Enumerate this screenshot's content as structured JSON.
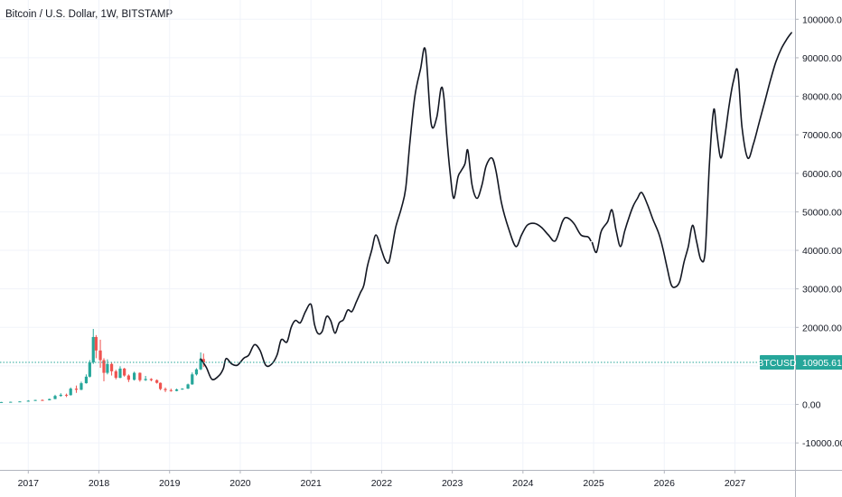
{
  "header": {
    "title": "Bitcoin / U.S. Dollar, 1W, BITSTAMP"
  },
  "chart_data": {
    "type": "line",
    "title": "Bitcoin / U.S. Dollar, 1W, BITSTAMP",
    "xlabel": "",
    "ylabel": "",
    "xlim": [
      2016.6,
      2027.85
    ],
    "ylim": [
      -17000,
      105000
    ],
    "grid": true,
    "x_ticks": [
      "2017",
      "2018",
      "2019",
      "2020",
      "2021",
      "2022",
      "2023",
      "2024",
      "2025",
      "2026",
      "2027"
    ],
    "y_ticks": [
      "100000.00",
      "90000.00",
      "80000.00",
      "70000.00",
      "60000.00",
      "50000.00",
      "40000.00",
      "30000.00",
      "20000.00",
      "10000.00",
      "0.00",
      "-10000.00"
    ],
    "y_tick_values": [
      100000,
      90000,
      80000,
      70000,
      60000,
      50000,
      40000,
      30000,
      20000,
      10000,
      0,
      -10000
    ],
    "last_price": {
      "label": "BTCUSD",
      "value": "10905.61",
      "numeric": 10905.61
    },
    "colors": {
      "up": "#26a69a",
      "down": "#ef5350",
      "projection": "#131722",
      "price_line": "#26a69a"
    },
    "candles": [
      {
        "x": 2016.62,
        "open": 600,
        "close": 620,
        "low": 580,
        "high": 650
      },
      {
        "x": 2016.75,
        "open": 620,
        "close": 680,
        "low": 600,
        "high": 720
      },
      {
        "x": 2016.88,
        "open": 680,
        "close": 780,
        "low": 660,
        "high": 800
      },
      {
        "x": 2017.0,
        "open": 780,
        "close": 960,
        "low": 750,
        "high": 1100
      },
      {
        "x": 2017.1,
        "open": 960,
        "close": 1150,
        "low": 900,
        "high": 1200
      },
      {
        "x": 2017.2,
        "open": 1150,
        "close": 1080,
        "low": 950,
        "high": 1280
      },
      {
        "x": 2017.3,
        "open": 1080,
        "close": 1400,
        "low": 1050,
        "high": 1500
      },
      {
        "x": 2017.38,
        "open": 1400,
        "close": 2200,
        "low": 1350,
        "high": 2500
      },
      {
        "x": 2017.46,
        "open": 2200,
        "close": 2500,
        "low": 2000,
        "high": 2900
      },
      {
        "x": 2017.54,
        "open": 2500,
        "close": 2400,
        "low": 1900,
        "high": 2800
      },
      {
        "x": 2017.6,
        "open": 2400,
        "close": 4100,
        "low": 2300,
        "high": 4400
      },
      {
        "x": 2017.68,
        "open": 4100,
        "close": 3800,
        "low": 3000,
        "high": 4900
      },
      {
        "x": 2017.75,
        "open": 3800,
        "close": 5500,
        "low": 3700,
        "high": 5900
      },
      {
        "x": 2017.82,
        "open": 5500,
        "close": 7200,
        "low": 5400,
        "high": 7800
      },
      {
        "x": 2017.87,
        "open": 7200,
        "close": 10900,
        "low": 7000,
        "high": 11500
      },
      {
        "x": 2017.92,
        "open": 10900,
        "close": 17500,
        "low": 10500,
        "high": 19600
      },
      {
        "x": 2017.96,
        "open": 17500,
        "close": 14000,
        "low": 12000,
        "high": 18000
      },
      {
        "x": 2018.02,
        "open": 14000,
        "close": 11500,
        "low": 9500,
        "high": 16800
      },
      {
        "x": 2018.07,
        "open": 11500,
        "close": 8200,
        "low": 6000,
        "high": 12000
      },
      {
        "x": 2018.12,
        "open": 8200,
        "close": 10500,
        "low": 7800,
        "high": 11700
      },
      {
        "x": 2018.18,
        "open": 10500,
        "close": 8600,
        "low": 7500,
        "high": 11000
      },
      {
        "x": 2018.24,
        "open": 8600,
        "close": 6900,
        "low": 6500,
        "high": 9000
      },
      {
        "x": 2018.3,
        "open": 6900,
        "close": 9300,
        "low": 6800,
        "high": 9900
      },
      {
        "x": 2018.36,
        "open": 9300,
        "close": 7500,
        "low": 7200,
        "high": 9500
      },
      {
        "x": 2018.42,
        "open": 7500,
        "close": 6400,
        "low": 5800,
        "high": 7800
      },
      {
        "x": 2018.5,
        "open": 6400,
        "close": 8200,
        "low": 6200,
        "high": 8500
      },
      {
        "x": 2018.58,
        "open": 8200,
        "close": 6300,
        "low": 5900,
        "high": 8300
      },
      {
        "x": 2018.66,
        "open": 6300,
        "close": 6600,
        "low": 6100,
        "high": 7400
      },
      {
        "x": 2018.74,
        "open": 6600,
        "close": 6300,
        "low": 6000,
        "high": 6800
      },
      {
        "x": 2018.82,
        "open": 6300,
        "close": 5600,
        "low": 5400,
        "high": 6500
      },
      {
        "x": 2018.87,
        "open": 5600,
        "close": 4000,
        "low": 3700,
        "high": 5700
      },
      {
        "x": 2018.94,
        "open": 4000,
        "close": 3700,
        "low": 3200,
        "high": 4400
      },
      {
        "x": 2019.02,
        "open": 3700,
        "close": 3500,
        "low": 3300,
        "high": 4100
      },
      {
        "x": 2019.1,
        "open": 3500,
        "close": 3900,
        "low": 3400,
        "high": 4100
      },
      {
        "x": 2019.18,
        "open": 3900,
        "close": 4100,
        "low": 3800,
        "high": 4200
      },
      {
        "x": 2019.26,
        "open": 4100,
        "close": 5200,
        "low": 4000,
        "high": 5400
      },
      {
        "x": 2019.32,
        "open": 5200,
        "close": 7800,
        "low": 5100,
        "high": 8300
      },
      {
        "x": 2019.38,
        "open": 7800,
        "close": 9100,
        "low": 7500,
        "high": 9400
      },
      {
        "x": 2019.44,
        "open": 9100,
        "close": 11800,
        "low": 8900,
        "high": 13500
      },
      {
        "x": 2019.48,
        "open": 11800,
        "close": 10900,
        "low": 9700,
        "high": 13200
      }
    ],
    "series": [
      {
        "type": "line",
        "x": [
          2019.44,
          2019.52,
          2019.6,
          2019.7,
          2019.76,
          2019.8,
          2019.88,
          2019.96,
          2020.05,
          2020.12,
          2020.2,
          2020.28,
          2020.36,
          2020.44,
          2020.52,
          2020.58,
          2020.66,
          2020.72,
          2020.78,
          2020.85,
          2020.92,
          2021.0,
          2021.05,
          2021.1,
          2021.16,
          2021.22,
          2021.28,
          2021.34,
          2021.4,
          2021.46,
          2021.52,
          2021.58,
          2021.64,
          2021.7,
          2021.75,
          2021.8,
          2021.86,
          2021.92,
          2022.0,
          2022.05,
          2022.1,
          2022.14,
          2022.2,
          2022.28,
          2022.34,
          2022.4,
          2022.47,
          2022.55,
          2022.62,
          2022.7,
          2022.78,
          2022.84,
          2022.88,
          2022.92,
          2022.97,
          2023.02,
          2023.08,
          2023.12,
          2023.18,
          2023.22,
          2023.28,
          2023.35,
          2023.42,
          2023.48,
          2023.56,
          2023.62,
          2023.7,
          2023.8,
          2023.9,
          2023.98,
          2024.06,
          2024.16,
          2024.26,
          2024.36,
          2024.46,
          2024.56,
          2024.62,
          2024.72,
          2024.82,
          2024.92,
          2024.96
        ],
        "y": [
          11800,
          9600,
          6500,
          7500,
          9300,
          11900,
          10500,
          10200,
          12000,
          12800,
          15500,
          14000,
          10200,
          10400,
          12800,
          16800,
          16200,
          20000,
          21800,
          21200,
          24000,
          26000,
          20800,
          18400,
          19000,
          22800,
          21700,
          18500,
          21200,
          22000,
          24500,
          24100,
          26500,
          29000,
          31000,
          36000,
          40000,
          44000,
          40000,
          37500,
          36800,
          40000,
          46000,
          51000,
          56000,
          68000,
          80000,
          87000,
          92000,
          73000,
          74500,
          82000,
          80000,
          70000,
          60000,
          53500,
          59000,
          60500,
          62500,
          66000,
          57000,
          53500,
          57000,
          62000,
          64000,
          60500,
          52000,
          45500,
          41000,
          44000,
          46500,
          47000,
          46000,
          44000,
          42500,
          47500,
          48500,
          47000,
          44000,
          43500,
          42500
        ]
      },
      {
        "type": "line",
        "x": [
          2024.98,
          2025.04,
          2025.1,
          2025.14,
          2025.2,
          2025.26,
          2025.32,
          2025.38,
          2025.44,
          2025.5,
          2025.56,
          2025.62,
          2025.68,
          2025.76,
          2025.84,
          2025.92,
          2025.98,
          2026.04,
          2026.1,
          2026.16,
          2026.22,
          2026.28,
          2026.34,
          2026.4,
          2026.46,
          2026.52,
          2026.58,
          2026.64,
          2026.7,
          2026.74,
          2026.8,
          2026.86,
          2026.92,
          2026.98,
          2027.04,
          2027.1,
          2027.18,
          2027.26,
          2027.34,
          2027.42,
          2027.5,
          2027.58,
          2027.66,
          2027.74,
          2027.8
        ],
        "y": [
          42000,
          39500,
          44500,
          46000,
          47500,
          50500,
          45000,
          41000,
          45000,
          48500,
          51500,
          53500,
          55000,
          52000,
          48000,
          44500,
          40500,
          35500,
          31000,
          30500,
          32000,
          37000,
          41000,
          46500,
          42000,
          37500,
          40000,
          63000,
          76500,
          71000,
          64000,
          70000,
          78000,
          84000,
          86500,
          72000,
          64000,
          67500,
          73000,
          78500,
          84000,
          89000,
          92500,
          95000,
          96500
        ]
      }
    ]
  }
}
